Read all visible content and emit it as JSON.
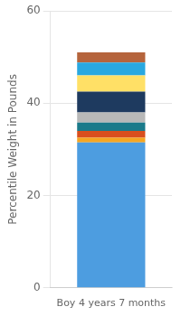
{
  "chart_data": {
    "type": "bar",
    "stacked": true,
    "categories": [
      "Boy 4 years 7 months"
    ],
    "series": [
      {
        "color": "#4d9de0",
        "values": [
          31.5
        ]
      },
      {
        "color": "#f5a623",
        "values": [
          1.0
        ]
      },
      {
        "color": "#d94f1e",
        "values": [
          1.5
        ]
      },
      {
        "color": "#1a7a8a",
        "values": [
          1.8
        ]
      },
      {
        "color": "#b8b8b8",
        "values": [
          2.2
        ]
      },
      {
        "color": "#1e3a5f",
        "values": [
          4.5
        ]
      },
      {
        "color": "#ffe066",
        "values": [
          3.5
        ]
      },
      {
        "color": "#29a8e0",
        "values": [
          2.8
        ]
      },
      {
        "color": "#b5643c",
        "values": [
          2.2
        ]
      }
    ],
    "ylabel": "Percentile Weight in Pounds",
    "ylim": [
      0,
      60
    ],
    "yticks": [
      0,
      20,
      40,
      60
    ],
    "grid": true
  }
}
